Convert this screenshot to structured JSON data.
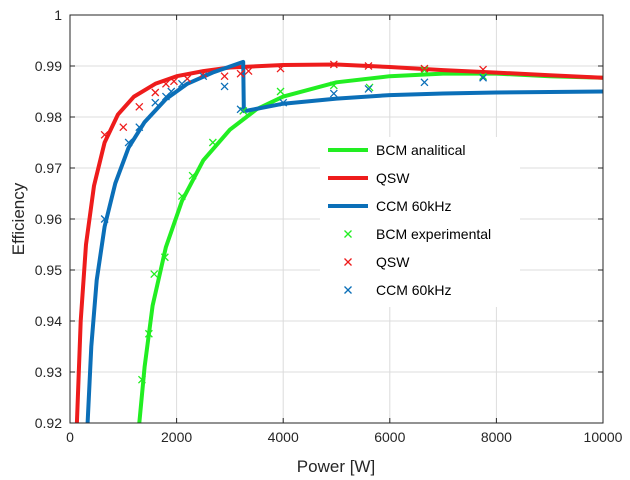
{
  "chart_data": {
    "type": "line",
    "xlabel": "Power  [W]",
    "ylabel": "Efficiency",
    "xlim": [
      0,
      10000
    ],
    "ylim": [
      0.92,
      1.0
    ],
    "xticks": [
      0,
      2000,
      4000,
      6000,
      8000,
      10000
    ],
    "yticks": [
      0.92,
      0.93,
      0.94,
      0.95,
      0.96,
      0.97,
      0.98,
      0.99,
      1.0
    ],
    "xtick_labels": [
      "0",
      "2000",
      "4000",
      "6000",
      "8000",
      "10000"
    ],
    "ytick_labels": [
      "0.92",
      "0.93",
      "0.94",
      "0.95",
      "0.96",
      "0.97",
      "0.98",
      "0.99",
      "1"
    ],
    "grid": true,
    "legend_position": "right-center",
    "series": [
      {
        "name": "BCM analitical",
        "kind": "line",
        "color": "#22ee22",
        "x": [
          1300,
          1400,
          1550,
          1800,
          2100,
          2500,
          3000,
          3500,
          4000,
          5000,
          6000,
          7000,
          8000,
          9000,
          10000
        ],
        "y": [
          0.92,
          0.931,
          0.943,
          0.9545,
          0.9635,
          0.9715,
          0.9775,
          0.9815,
          0.984,
          0.9868,
          0.988,
          0.9885,
          0.9885,
          0.988,
          0.9877
        ]
      },
      {
        "name": "QSW",
        "kind": "line",
        "color": "#ee1c1c",
        "x": [
          130,
          200,
          300,
          450,
          650,
          900,
          1200,
          1600,
          2000,
          2500,
          3000,
          4000,
          5000,
          6000,
          7000,
          8000,
          9000,
          10000
        ],
        "y": [
          0.92,
          0.94,
          0.955,
          0.9665,
          0.975,
          0.9805,
          0.984,
          0.9865,
          0.988,
          0.989,
          0.9897,
          0.9902,
          0.9903,
          0.9898,
          0.9892,
          0.9887,
          0.9882,
          0.9877
        ]
      },
      {
        "name": "CCM 60kHz",
        "kind": "line",
        "color": "#0b6fb8",
        "x": [
          330,
          400,
          500,
          650,
          850,
          1100,
          1400,
          1800,
          2200,
          2700,
          3250,
          3260,
          3300,
          4000,
          5000,
          6000,
          7000,
          8000,
          9000,
          10000
        ],
        "y": [
          0.92,
          0.935,
          0.948,
          0.9585,
          0.967,
          0.974,
          0.979,
          0.9835,
          0.9865,
          0.9888,
          0.9908,
          0.9818,
          0.9812,
          0.9826,
          0.9836,
          0.9843,
          0.9846,
          0.9848,
          0.9849,
          0.985
        ]
      },
      {
        "name": "BCM  experimental",
        "kind": "marker",
        "marker": "x",
        "color": "#22ee22",
        "x": [
          1350,
          1480,
          1580,
          1780,
          2100,
          2300,
          2680,
          3250,
          3950,
          4950,
          5620,
          6650,
          7750
        ],
        "y": [
          0.9285,
          0.9375,
          0.9492,
          0.9525,
          0.9645,
          0.9685,
          0.975,
          0.9812,
          0.985,
          0.9862,
          0.9858,
          0.9892,
          0.988
        ]
      },
      {
        "name": "QSW",
        "kind": "marker",
        "marker": "x",
        "color": "#ee1c1c",
        "x": [
          650,
          1000,
          1300,
          1600,
          1800,
          1950,
          2200,
          2500,
          2900,
          3200,
          3350,
          3950,
          4950,
          5600,
          6650,
          7750
        ],
        "y": [
          0.9765,
          0.978,
          0.982,
          0.9848,
          0.9865,
          0.987,
          0.9875,
          0.9885,
          0.988,
          0.9885,
          0.989,
          0.9895,
          0.9903,
          0.99,
          0.9895,
          0.9893
        ]
      },
      {
        "name": "CCM 60kHz",
        "kind": "marker",
        "marker": "x",
        "color": "#0b6fb8",
        "x": [
          650,
          1100,
          1300,
          1600,
          1800,
          1900,
          2100,
          2500,
          2900,
          3200,
          4000,
          4950,
          5600,
          6650,
          7750
        ],
        "y": [
          0.96,
          0.975,
          0.978,
          0.9828,
          0.984,
          0.985,
          0.9865,
          0.988,
          0.986,
          0.9815,
          0.9828,
          0.9846,
          0.9855,
          0.9868,
          0.9877
        ]
      }
    ]
  }
}
